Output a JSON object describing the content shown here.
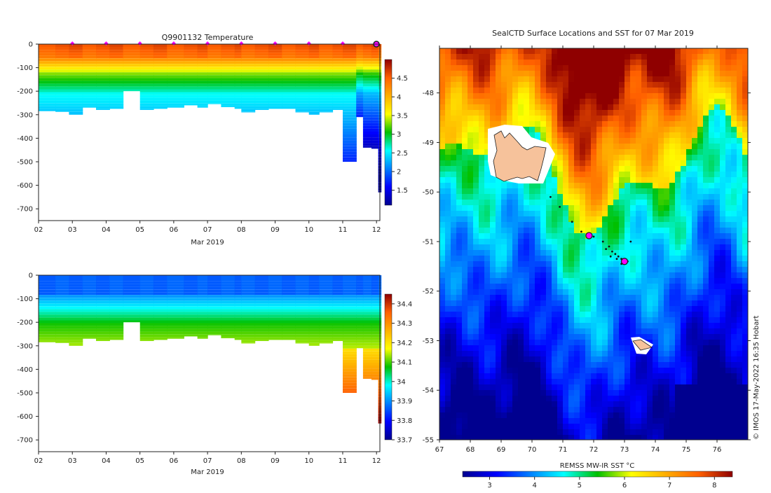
{
  "chart_data": [
    {
      "type": "heatmap",
      "id": "temp-profile",
      "title": "Q9901132  Temperature",
      "xlabel": "Mar 2019",
      "xticks": [
        "02",
        "03",
        "04",
        "05",
        "06",
        "07",
        "08",
        "09",
        "10",
        "11",
        "12"
      ],
      "xlim": [
        2,
        12.1
      ],
      "ylim": [
        -750,
        0
      ],
      "yticks": [
        0,
        -100,
        -200,
        -300,
        -400,
        -500,
        -600,
        -700
      ],
      "markers_x": [
        3,
        4,
        5,
        6,
        7,
        8,
        9,
        10,
        11
      ],
      "colorbar": {
        "min": 1.1,
        "max": 5.0,
        "ticks": [
          1.5,
          2,
          2.5,
          3,
          3.5,
          4,
          4.5
        ]
      },
      "profiles_depth": [
        [
          2.0,
          285
        ],
        [
          2.5,
          288
        ],
        [
          2.9,
          300
        ],
        [
          3.3,
          270
        ],
        [
          3.7,
          280
        ],
        [
          4.1,
          275
        ],
        [
          4.5,
          200
        ],
        [
          5.0,
          280
        ],
        [
          5.4,
          275
        ],
        [
          5.8,
          270
        ],
        [
          6.3,
          260
        ],
        [
          6.7,
          270
        ],
        [
          7.0,
          255
        ],
        [
          7.4,
          268
        ],
        [
          7.8,
          275
        ],
        [
          8.0,
          290
        ],
        [
          8.4,
          280
        ],
        [
          8.8,
          275
        ],
        [
          9.2,
          275
        ],
        [
          9.6,
          290
        ],
        [
          10.0,
          300
        ],
        [
          10.3,
          290
        ],
        [
          10.7,
          280
        ],
        [
          11.0,
          500
        ],
        [
          11.4,
          310
        ],
        [
          11.6,
          440
        ],
        [
          11.85,
          445
        ],
        [
          12.05,
          630
        ]
      ]
    },
    {
      "type": "heatmap",
      "id": "salinity-profile",
      "title": "",
      "xlabel": "Mar 2019",
      "xticks": [
        "02",
        "03",
        "04",
        "05",
        "06",
        "07",
        "08",
        "09",
        "10",
        "11",
        "12"
      ],
      "xlim": [
        2,
        12.1
      ],
      "ylim": [
        -750,
        0
      ],
      "yticks": [
        0,
        -100,
        -200,
        -300,
        -400,
        -500,
        -600,
        -700
      ],
      "colorbar": {
        "min": 33.7,
        "max": 34.45,
        "ticks": [
          33.7,
          33.8,
          33.9,
          34,
          34.1,
          34.2,
          34.3,
          34.4
        ]
      },
      "profiles_depth": [
        [
          2.0,
          285
        ],
        [
          2.5,
          288
        ],
        [
          2.9,
          300
        ],
        [
          3.3,
          270
        ],
        [
          3.7,
          280
        ],
        [
          4.1,
          275
        ],
        [
          4.5,
          200
        ],
        [
          5.0,
          280
        ],
        [
          5.4,
          275
        ],
        [
          5.8,
          270
        ],
        [
          6.3,
          260
        ],
        [
          6.7,
          270
        ],
        [
          7.0,
          255
        ],
        [
          7.4,
          268
        ],
        [
          7.8,
          275
        ],
        [
          8.0,
          290
        ],
        [
          8.4,
          280
        ],
        [
          8.8,
          275
        ],
        [
          9.2,
          275
        ],
        [
          9.6,
          290
        ],
        [
          10.0,
          300
        ],
        [
          10.3,
          290
        ],
        [
          10.7,
          280
        ],
        [
          11.0,
          500
        ],
        [
          11.4,
          310
        ],
        [
          11.6,
          440
        ],
        [
          11.85,
          445
        ],
        [
          12.05,
          630
        ]
      ]
    },
    {
      "type": "heatmap",
      "id": "sst-map",
      "title": "SealCTD Surface Locations and SST for 07 Mar 2019",
      "xlim": [
        67,
        77
      ],
      "ylim": [
        -55,
        -47.1
      ],
      "xticks": [
        67,
        68,
        69,
        70,
        71,
        72,
        73,
        74,
        75,
        76
      ],
      "yticks": [
        -48,
        -49,
        -50,
        -51,
        -52,
        -53,
        -54,
        -55
      ],
      "colorbar": {
        "label": "REMSS MW-IR SST °C",
        "min": 2.4,
        "max": 8.4,
        "ticks": [
          3,
          4,
          5,
          6,
          7,
          8
        ]
      },
      "credit": "© IMOS 17-May-2022 16:35 Hobart",
      "highlight_positions": [
        [
          71.85,
          -50.88
        ],
        [
          73.0,
          -51.4
        ]
      ],
      "track_points": [
        [
          70.6,
          -50.1
        ],
        [
          70.9,
          -50.3
        ],
        [
          71.3,
          -50.6
        ],
        [
          71.6,
          -50.8
        ],
        [
          72.0,
          -50.9
        ],
        [
          72.3,
          -51.0
        ],
        [
          72.5,
          -51.1
        ],
        [
          72.6,
          -51.2
        ],
        [
          72.7,
          -51.25
        ],
        [
          72.8,
          -51.3
        ],
        [
          72.9,
          -51.35
        ],
        [
          73.1,
          -51.4
        ],
        [
          73.2,
          -51.0
        ],
        [
          72.4,
          -51.15
        ],
        [
          72.55,
          -51.3
        ],
        [
          72.75,
          -51.35
        ],
        [
          72.9,
          -51.45
        ]
      ]
    }
  ]
}
